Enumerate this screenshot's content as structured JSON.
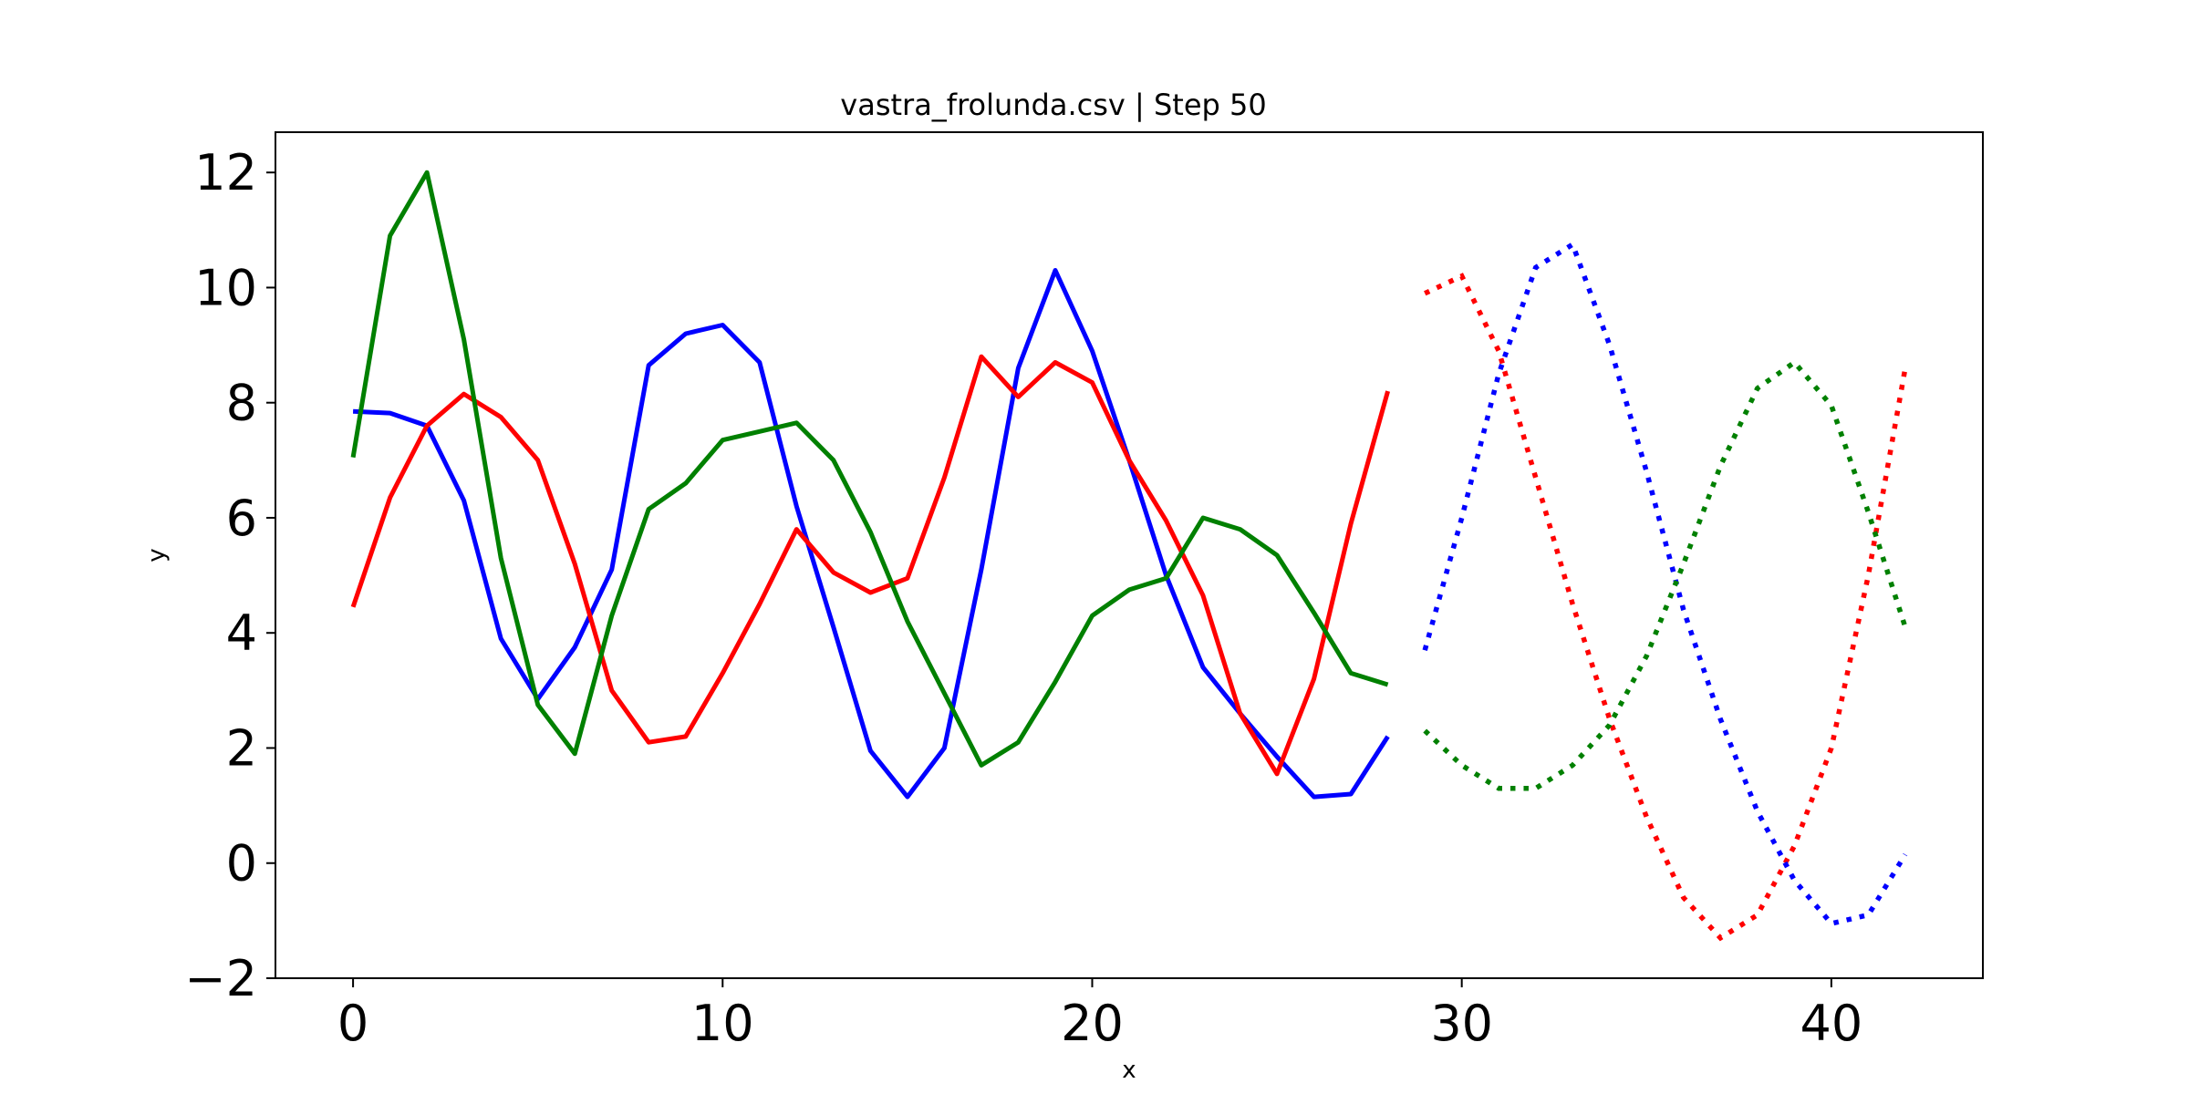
{
  "chart_data": {
    "type": "line",
    "title": "vastra_frolunda.csv | Step 50",
    "xlabel": "x",
    "ylabel": "y",
    "xlim": [
      -2.1,
      44.1
    ],
    "ylim": [
      -2.0,
      12.7
    ],
    "xticks": [
      0,
      10,
      20,
      30,
      40
    ],
    "yticks": [
      -2,
      0,
      2,
      4,
      6,
      8,
      10,
      12
    ],
    "ytick_labels": [
      "−2",
      "0",
      "2",
      "4",
      "6",
      "8",
      "10",
      "12"
    ],
    "grid": false,
    "series": [
      {
        "color": "#0000ff",
        "style": "solid",
        "x": [
          0,
          1,
          2,
          3,
          4,
          5,
          6,
          7,
          8,
          9,
          10,
          11,
          12,
          13,
          14,
          15,
          16,
          17,
          18,
          19,
          20,
          21,
          22,
          23,
          24,
          25,
          26,
          27,
          28
        ],
        "values": [
          7.85,
          7.82,
          7.6,
          6.3,
          3.9,
          2.85,
          3.75,
          5.1,
          8.65,
          9.2,
          9.35,
          8.7,
          6.2,
          4.1,
          1.95,
          1.15,
          2.0,
          5.1,
          8.6,
          10.3,
          8.9,
          7.0,
          5.0,
          3.4,
          2.6,
          1.85,
          1.15,
          1.2,
          2.2
        ]
      },
      {
        "color": "#ff0000",
        "style": "solid",
        "x": [
          0,
          1,
          2,
          3,
          4,
          5,
          6,
          7,
          8,
          9,
          10,
          11,
          12,
          13,
          14,
          15,
          16,
          17,
          18,
          19,
          20,
          21,
          22,
          23,
          24,
          25,
          26,
          27,
          28
        ],
        "values": [
          4.45,
          6.35,
          7.6,
          8.15,
          7.75,
          7.0,
          5.2,
          3.0,
          2.1,
          2.2,
          3.3,
          4.5,
          5.8,
          5.05,
          4.7,
          4.95,
          6.7,
          8.8,
          8.1,
          8.7,
          8.35,
          7.0,
          5.95,
          4.65,
          2.6,
          1.55,
          3.2,
          5.9,
          8.2
        ]
      },
      {
        "color": "#008000",
        "style": "solid",
        "x": [
          0,
          1,
          2,
          3,
          4,
          5,
          6,
          7,
          8,
          9,
          10,
          11,
          12,
          13,
          14,
          15,
          16,
          17,
          18,
          19,
          20,
          21,
          22,
          23,
          24,
          25,
          26,
          27,
          28
        ],
        "values": [
          7.05,
          10.9,
          12.0,
          9.1,
          5.3,
          2.75,
          1.9,
          4.3,
          6.15,
          6.6,
          7.35,
          7.5,
          7.65,
          7.0,
          5.75,
          4.2,
          2.95,
          1.7,
          2.1,
          3.15,
          4.3,
          4.75,
          4.95,
          6.0,
          5.8,
          5.35,
          4.35,
          3.3,
          3.1
        ]
      },
      {
        "color": "#ff0000",
        "style": "dotted",
        "x": [
          29,
          30,
          31,
          32,
          33,
          34,
          35,
          36,
          37,
          38,
          39,
          40,
          41,
          42
        ],
        "values": [
          9.9,
          10.2,
          8.9,
          6.7,
          4.5,
          2.5,
          0.8,
          -0.6,
          -1.3,
          -0.9,
          0.3,
          2.0,
          5.0,
          8.6
        ]
      },
      {
        "color": "#0000ff",
        "style": "dotted",
        "x": [
          29,
          30,
          31,
          32,
          33,
          34,
          35,
          36,
          37,
          38,
          39,
          40,
          41,
          42
        ],
        "values": [
          3.7,
          6.0,
          8.5,
          10.35,
          10.75,
          9.0,
          6.8,
          4.4,
          2.5,
          0.9,
          -0.3,
          -1.05,
          -0.9,
          0.15
        ]
      },
      {
        "color": "#008000",
        "style": "dotted",
        "x": [
          29,
          30,
          31,
          32,
          33,
          34,
          35,
          36,
          37,
          38,
          39,
          40,
          41,
          42
        ],
        "values": [
          2.3,
          1.7,
          1.3,
          1.3,
          1.7,
          2.4,
          3.6,
          5.2,
          6.9,
          8.25,
          8.7,
          7.95,
          6.1,
          4.1
        ]
      }
    ]
  }
}
